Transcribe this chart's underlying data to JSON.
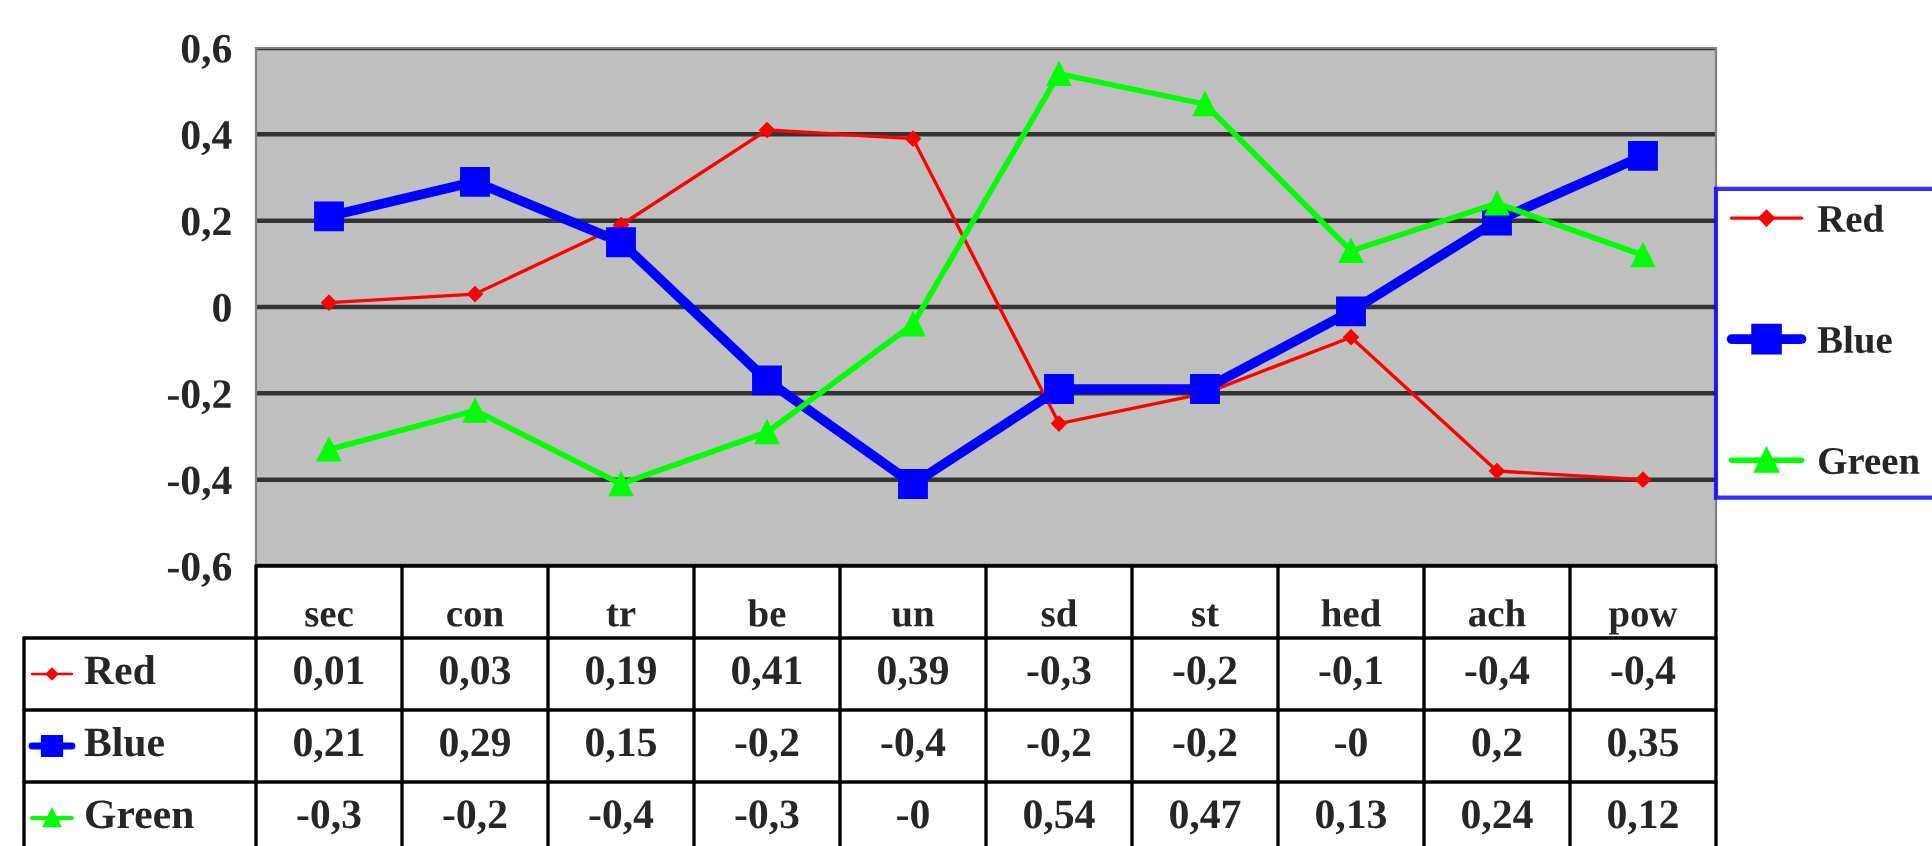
{
  "chart_data": {
    "type": "line",
    "categories": [
      "sec",
      "con",
      "tr",
      "be",
      "un",
      "sd",
      "st",
      "hed",
      "ach",
      "pow"
    ],
    "series": [
      {
        "name": "Red",
        "color": "#ff0000",
        "marker": "diamond",
        "values": [
          0.01,
          0.03,
          0.19,
          0.41,
          0.39,
          -0.27,
          -0.2,
          -0.07,
          -0.38,
          -0.4
        ],
        "value_labels": [
          "0,01",
          "0,03",
          "0,19",
          "0,41",
          "0,39",
          "-0,3",
          "-0,2",
          "-0,1",
          "-0,4",
          "-0,4"
        ]
      },
      {
        "name": "Blue",
        "color": "#0000ff",
        "marker": "square",
        "values": [
          0.21,
          0.29,
          0.15,
          -0.17,
          -0.41,
          -0.19,
          -0.19,
          -0.01,
          0.2,
          0.35
        ],
        "value_labels": [
          "0,21",
          "0,29",
          "0,15",
          "-0,2",
          "-0,4",
          "-0,2",
          "-0,2",
          "-0",
          "0,2",
          "0,35"
        ]
      },
      {
        "name": "Green",
        "color": "#00ff00",
        "marker": "triangle",
        "values": [
          -0.33,
          -0.24,
          -0.41,
          -0.29,
          -0.04,
          0.54,
          0.47,
          0.13,
          0.24,
          0.12
        ],
        "value_labels": [
          "-0,3",
          "-0,2",
          "-0,4",
          "-0,3",
          "-0",
          "0,54",
          "0,47",
          "0,13",
          "0,24",
          "0,12"
        ]
      }
    ],
    "ylim": [
      -0.6,
      0.6
    ],
    "yticks": [
      {
        "value": -0.6,
        "label": "-0,6"
      },
      {
        "value": -0.4,
        "label": "-0,4"
      },
      {
        "value": -0.2,
        "label": "-0,2"
      },
      {
        "value": 0,
        "label": "0"
      },
      {
        "value": 0.2,
        "label": "0,2"
      },
      {
        "value": 0.4,
        "label": "0,4"
      },
      {
        "value": 0.6,
        "label": "0,6"
      }
    ],
    "grid": "y",
    "legend": "right"
  }
}
